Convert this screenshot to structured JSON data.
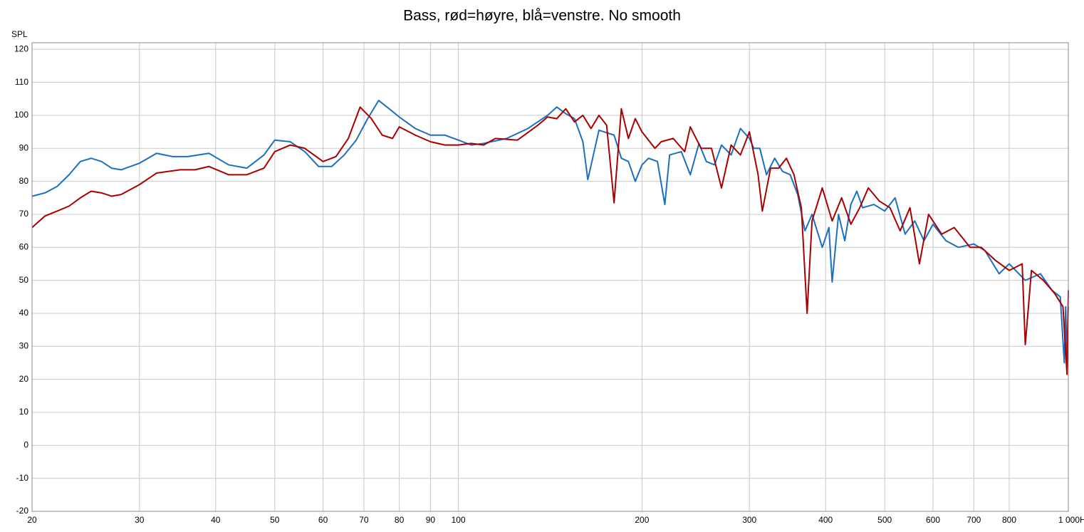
{
  "chart_data": {
    "type": "line",
    "title": "Bass, rød=høyre, blå=venstre. No smooth",
    "y_label": "SPL",
    "xscale": "log",
    "xlim": [
      20,
      1000
    ],
    "ylim": [
      -20,
      122
    ],
    "xticks": [
      20,
      30,
      40,
      50,
      60,
      70,
      80,
      90,
      100,
      200,
      300,
      400,
      500,
      600,
      700,
      800,
      {
        "value": 1000,
        "label": "1 000Hz"
      }
    ],
    "yticks": [
      -20,
      -10,
      0,
      10,
      20,
      30,
      40,
      50,
      60,
      70,
      80,
      90,
      100,
      110,
      120
    ],
    "grid": true,
    "series": [
      {
        "color": "#1a6fc0",
        "x": [
          20,
          21,
          22,
          23,
          24,
          25,
          26,
          27,
          28,
          30,
          31,
          32,
          34,
          36,
          39,
          42,
          45,
          48,
          50,
          53,
          56,
          59,
          62,
          65,
          68,
          71,
          74,
          77,
          80,
          85,
          90,
          95,
          100,
          105,
          110,
          120,
          130,
          140,
          145,
          150,
          155,
          160,
          163,
          170,
          180,
          185,
          190,
          195,
          200,
          205,
          212,
          218,
          222,
          232,
          240,
          248,
          255,
          263,
          270,
          280,
          290,
          300,
          305,
          312,
          320,
          330,
          340,
          350,
          360,
          370,
          380,
          395,
          405,
          410,
          420,
          430,
          440,
          450,
          460,
          480,
          500,
          520,
          540,
          560,
          580,
          600,
          630,
          660,
          700,
          730,
          770,
          800,
          850,
          900,
          940,
          970,
          985,
          990,
          995,
          1000
        ],
        "values": [
          75.5,
          76.5,
          78.5,
          82,
          86,
          87,
          86,
          84,
          83.5,
          85.5,
          87,
          88.5,
          87.5,
          87.5,
          88.5,
          85,
          84,
          88,
          92.5,
          92,
          89,
          84.5,
          84.5,
          88,
          92.5,
          99,
          104.5,
          102,
          99.5,
          96,
          94,
          94,
          92.5,
          91,
          91.5,
          93,
          96,
          100,
          102.5,
          100.5,
          99,
          92,
          80.5,
          95.5,
          94,
          87,
          86,
          80,
          85,
          87,
          86,
          73,
          88,
          89,
          82,
          91.5,
          86,
          85,
          91,
          88,
          96,
          93,
          90,
          90,
          82,
          87,
          83,
          82,
          76,
          65,
          70,
          60,
          66,
          49.5,
          70,
          62,
          73,
          77,
          72,
          73,
          71,
          75,
          64,
          68,
          62,
          67,
          62,
          60,
          61,
          59,
          52,
          55,
          50,
          52,
          47,
          45,
          25,
          42,
          24,
          42
        ]
      },
      {
        "color": "#a80000",
        "x": [
          20,
          21,
          22,
          23,
          24,
          25,
          26,
          27,
          28,
          30,
          32,
          35,
          37,
          39,
          42,
          45,
          48,
          50,
          53,
          56,
          60,
          63,
          66,
          69,
          72,
          75,
          78,
          80,
          85,
          90,
          95,
          100,
          105,
          110,
          115,
          125,
          135,
          140,
          145,
          150,
          155,
          160,
          165,
          170,
          175,
          180,
          185,
          190,
          195,
          200,
          210,
          215,
          225,
          235,
          240,
          250,
          260,
          270,
          280,
          290,
          300,
          310,
          315,
          325,
          335,
          345,
          355,
          365,
          373,
          380,
          395,
          410,
          425,
          440,
          455,
          470,
          490,
          510,
          530,
          550,
          570,
          590,
          620,
          650,
          690,
          720,
          760,
          800,
          840,
          850,
          870,
          910,
          950,
          980,
          995,
          1000
        ],
        "values": [
          66,
          69.5,
          71,
          72.5,
          75,
          77,
          76.5,
          75.5,
          76,
          79,
          82.5,
          83.5,
          83.5,
          84.5,
          82,
          82,
          84,
          89,
          91,
          90,
          86,
          87.5,
          93,
          102.5,
          99,
          94,
          93,
          96.5,
          94,
          92,
          91,
          91,
          91.5,
          91,
          93,
          92.5,
          97,
          99.5,
          99,
          102,
          98,
          100,
          96,
          100,
          97,
          73.5,
          102,
          93,
          99,
          95,
          90,
          92,
          93,
          89,
          96.5,
          90,
          90,
          78,
          91,
          88,
          95,
          82,
          71,
          84,
          84,
          87,
          82,
          72,
          40,
          68,
          78,
          68,
          75,
          67,
          72,
          78,
          74,
          72,
          65,
          72,
          55,
          70,
          64,
          66,
          60,
          60,
          56,
          53,
          55,
          30.5,
          53,
          50,
          46,
          42,
          21.5,
          47
        ]
      }
    ]
  }
}
